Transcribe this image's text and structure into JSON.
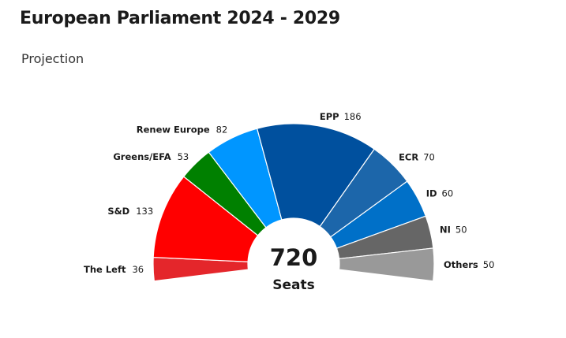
{
  "header": {
    "title": "European Parliament 2024 - 2029",
    "subtitle": "Projection"
  },
  "chart_data": {
    "type": "pie",
    "variant": "semicircle-parliament",
    "total_label": "720",
    "total_caption": "Seats",
    "series": [
      {
        "name": "The Left",
        "value": 36,
        "color": "#e4262b"
      },
      {
        "name": "S&D",
        "value": 133,
        "color": "#ff0000"
      },
      {
        "name": "Greens/EFA",
        "value": 53,
        "color": "#008000"
      },
      {
        "name": "Renew Europe",
        "value": 82,
        "color": "#0096ff"
      },
      {
        "name": "EPP",
        "value": 186,
        "color": "#00509e"
      },
      {
        "name": "ECR",
        "value": 70,
        "color": "#1c66aa"
      },
      {
        "name": "ID",
        "value": 60,
        "color": "#0070c8"
      },
      {
        "name": "NI",
        "value": 50,
        "color": "#666666"
      },
      {
        "name": "Others",
        "value": 50,
        "color": "#999999"
      }
    ]
  }
}
